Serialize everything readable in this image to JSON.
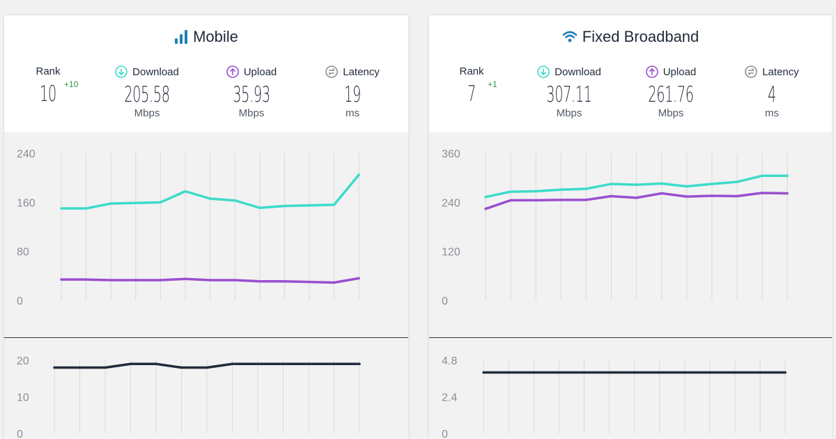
{
  "colors": {
    "download": "#3ddbc9",
    "upload": "#9a4fd0",
    "latency": "#222b3c",
    "grid": "#d9d9d9",
    "axis_text": "#8a8f96",
    "mobile_icon": "#1c7fb5",
    "wifi_icon": "#1c7fb5",
    "rank_change": "#2a9a3d"
  },
  "panels": {
    "mobile": {
      "title": "Mobile",
      "icon": "signal-bars-icon",
      "rank_label": "Rank",
      "rank": "10",
      "rank_change": "+10",
      "download_label": "Download",
      "download": "205.58",
      "download_unit": "Mbps",
      "upload_label": "Upload",
      "upload": "35.93",
      "upload_unit": "Mbps",
      "latency_label": "Latency",
      "latency": "19",
      "latency_unit": "ms"
    },
    "fixed": {
      "title": "Fixed Broadband",
      "icon": "wifi-icon",
      "rank_label": "Rank",
      "rank": "7",
      "rank_change": "+1",
      "download_label": "Download",
      "download": "307.11",
      "download_unit": "Mbps",
      "upload_label": "Upload",
      "upload": "261.76",
      "upload_unit": "Mbps",
      "latency_label": "Latency",
      "latency": "4",
      "latency_unit": "ms"
    }
  },
  "chart_data": [
    {
      "id": "mobile-speed",
      "type": "line",
      "ylim": [
        0,
        240
      ],
      "yticks": [
        "0",
        "80",
        "160",
        "240"
      ],
      "x": [
        1,
        2,
        3,
        4,
        5,
        6,
        7,
        8,
        9,
        10,
        11,
        12,
        13
      ],
      "series": [
        {
          "key": "download",
          "values": [
            150,
            150,
            158,
            159,
            160,
            178,
            166,
            163,
            151,
            154,
            155,
            156,
            205
          ]
        },
        {
          "key": "upload",
          "values": [
            34,
            34,
            33,
            33,
            33,
            35,
            33,
            33,
            31,
            31,
            30,
            29,
            36
          ]
        }
      ],
      "grid": true
    },
    {
      "id": "mobile-latency",
      "type": "line",
      "ylim": [
        0,
        20
      ],
      "yticks": [
        "0",
        "10",
        "20"
      ],
      "x": [
        1,
        2,
        3,
        4,
        5,
        6,
        7,
        8,
        9,
        10,
        11,
        12,
        13
      ],
      "series": [
        {
          "key": "latency",
          "values": [
            18,
            18,
            18,
            19,
            19,
            18,
            18,
            19,
            19,
            19,
            19,
            19,
            19
          ]
        }
      ],
      "grid": true
    },
    {
      "id": "fixed-speed",
      "type": "line",
      "ylim": [
        0,
        360
      ],
      "yticks": [
        "0",
        "120",
        "240",
        "360"
      ],
      "x": [
        1,
        2,
        3,
        4,
        5,
        6,
        7,
        8,
        9,
        10,
        11,
        12,
        13
      ],
      "series": [
        {
          "key": "download",
          "values": [
            253,
            266,
            267,
            271,
            273,
            285,
            283,
            286,
            279,
            285,
            290,
            305,
            305
          ]
        },
        {
          "key": "upload",
          "values": [
            224,
            245,
            245,
            246,
            246,
            255,
            251,
            262,
            254,
            256,
            255,
            263,
            262
          ]
        }
      ],
      "grid": true
    },
    {
      "id": "fixed-latency",
      "type": "line",
      "ylim": [
        0,
        4.8
      ],
      "yticks": [
        "0",
        "2.4",
        "4.8"
      ],
      "x": [
        1,
        2,
        3,
        4,
        5,
        6,
        7,
        8,
        9,
        10,
        11,
        12,
        13
      ],
      "series": [
        {
          "key": "latency",
          "values": [
            4,
            4,
            4,
            4,
            4,
            4,
            4,
            4,
            4,
            4,
            4,
            4,
            4
          ]
        }
      ],
      "grid": true
    }
  ]
}
